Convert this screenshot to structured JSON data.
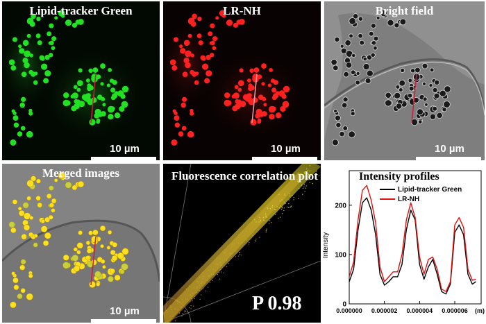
{
  "panels": {
    "green": {
      "title": "Lipid-tracker Green",
      "scale_label": "10 µm"
    },
    "red": {
      "title": "LR-NH",
      "scale_label": "10 µm"
    },
    "bright": {
      "title": "Bright field",
      "scale_label": "10 µm"
    },
    "merged": {
      "title": "Merged images",
      "scale_label": "10 µm"
    },
    "correlation": {
      "title": "Fluorescence correlation plot",
      "value_label": "P 0.98"
    }
  },
  "colors": {
    "green_channel": "#22e022",
    "red_channel": "#ff2020",
    "merged_overlap": "#ffe020",
    "profile_line": "#d01a3a",
    "series_black": "#000000",
    "series_red": "#e01010"
  },
  "chart_data": {
    "type": "line",
    "title": "Intensity profiles",
    "xlabel": "",
    "ylabel": "Intensity",
    "x_unit_label": "(m)",
    "xlim": [
      0,
      7.5e-06
    ],
    "ylim": [
      0,
      270
    ],
    "x_ticks": [
      0,
      2e-06,
      4e-06,
      6e-06
    ],
    "x_tick_labels": [
      "0.000000",
      "0.000002",
      "0.000004",
      "0.000006"
    ],
    "y_ticks": [
      0,
      100,
      200
    ],
    "y_tick_labels": [
      "0",
      "100",
      "200"
    ],
    "legend_position": "top-right",
    "x": [
      0,
      2.5e-07,
      5e-07,
      7.5e-07,
      1e-06,
      1.25e-06,
      1.5e-06,
      1.75e-06,
      2e-06,
      2.25e-06,
      2.5e-06,
      2.75e-06,
      3e-06,
      3.25e-06,
      3.5e-06,
      3.75e-06,
      4e-06,
      4.25e-06,
      4.5e-06,
      4.75e-06,
      5e-06,
      5.25e-06,
      5.5e-06,
      5.75e-06,
      6e-06,
      6.25e-06,
      6.5e-06,
      6.75e-06,
      7e-06,
      7.2e-06
    ],
    "series": [
      {
        "name": "Lipid-tracker Green",
        "color": "#000000",
        "values": [
          45,
          70,
          150,
          205,
          215,
          190,
          140,
          60,
          38,
          45,
          55,
          55,
          80,
          150,
          190,
          170,
          80,
          50,
          75,
          90,
          60,
          25,
          20,
          40,
          145,
          160,
          140,
          60,
          40,
          45
        ]
      },
      {
        "name": "LR-NH",
        "color": "#e01010",
        "values": [
          55,
          85,
          170,
          230,
          240,
          210,
          165,
          75,
          45,
          55,
          65,
          65,
          100,
          170,
          205,
          175,
          95,
          60,
          90,
          95,
          70,
          30,
          25,
          45,
          160,
          175,
          155,
          70,
          48,
          50
        ]
      }
    ]
  }
}
